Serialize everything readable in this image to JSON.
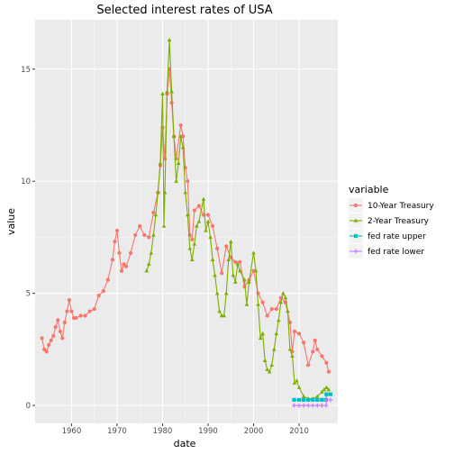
{
  "chart_data": {
    "type": "line",
    "title": "Selected interest rates of USA",
    "xlabel": "date",
    "ylabel": "value",
    "xlim": [
      1952,
      2018.5
    ],
    "ylim": [
      -0.8,
      17.2
    ],
    "x_ticks": [
      {
        "value": 1960,
        "label": "1960"
      },
      {
        "value": 1970,
        "label": "1970"
      },
      {
        "value": 1980,
        "label": "1980"
      },
      {
        "value": 1990,
        "label": "1990"
      },
      {
        "value": 2000,
        "label": "2000"
      },
      {
        "value": 2010,
        "label": "2010"
      }
    ],
    "y_ticks": [
      {
        "value": 0,
        "label": "0"
      },
      {
        "value": 5,
        "label": "5"
      },
      {
        "value": 10,
        "label": "10"
      },
      {
        "value": 15,
        "label": "15"
      }
    ],
    "grid": true,
    "legend": {
      "title": "variable",
      "placement": "right"
    },
    "series": [
      {
        "name": "10-Year Treasury",
        "color": "#F8766D",
        "marker": "circle",
        "x": [
          1953.5,
          1954.0,
          1954.5,
          1955.0,
          1955.5,
          1956.0,
          1956.5,
          1957.0,
          1957.5,
          1958.0,
          1958.5,
          1959.0,
          1959.5,
          1960.0,
          1960.5,
          1961.0,
          1962.0,
          1963.0,
          1964.0,
          1965.0,
          1966.0,
          1967.0,
          1968.0,
          1969.0,
          1969.5,
          1970.0,
          1970.5,
          1971.0,
          1971.5,
          1972.0,
          1973.0,
          1974.0,
          1975.0,
          1976.0,
          1977.0,
          1978.0,
          1979.0,
          1979.5,
          1980.0,
          1980.5,
          1981.0,
          1981.5,
          1982.0,
          1982.5,
          1983.0,
          1984.0,
          1984.5,
          1985.0,
          1985.5,
          1986.0,
          1986.5,
          1987.0,
          1988.0,
          1989.0,
          1990.0,
          1991.0,
          1992.0,
          1993.0,
          1994.0,
          1995.0,
          1996.0,
          1997.0,
          1998.0,
          1999.0,
          2000.0,
          2001.0,
          2002.0,
          2003.0,
          2004.0,
          2005.0,
          2006.0,
          2007.0,
          2008.0,
          2008.5,
          2009.0,
          2010.0,
          2011.0,
          2012.0,
          2013.0,
          2013.5,
          2014.0,
          2015.0,
          2016.0,
          2016.5
        ],
        "values": [
          3.0,
          2.5,
          2.4,
          2.7,
          2.9,
          3.1,
          3.5,
          3.8,
          3.3,
          3.0,
          3.7,
          4.2,
          4.7,
          4.2,
          3.9,
          3.9,
          4.0,
          4.0,
          4.2,
          4.3,
          4.9,
          5.1,
          5.6,
          6.5,
          7.3,
          7.8,
          6.8,
          6.0,
          6.3,
          6.2,
          6.8,
          7.6,
          8.0,
          7.6,
          7.5,
          8.6,
          9.5,
          10.7,
          12.4,
          11.0,
          13.9,
          15.0,
          13.5,
          12.0,
          11.0,
          12.5,
          12.0,
          10.6,
          10.0,
          7.6,
          7.4,
          8.7,
          8.9,
          8.5,
          8.5,
          8.0,
          7.0,
          5.9,
          7.1,
          6.6,
          6.4,
          6.4,
          5.3,
          5.6,
          6.0,
          5.0,
          4.6,
          4.0,
          4.3,
          4.3,
          4.8,
          4.6,
          3.7,
          2.4,
          3.3,
          3.2,
          2.8,
          1.8,
          2.4,
          2.9,
          2.5,
          2.2,
          1.9,
          1.5
        ]
      },
      {
        "name": "2-Year Treasury",
        "color": "#7CAE00",
        "marker": "triangle",
        "x": [
          1976.5,
          1977.0,
          1977.5,
          1978.0,
          1978.5,
          1979.0,
          1979.5,
          1980.0,
          1980.3,
          1980.5,
          1981.0,
          1981.5,
          1982.0,
          1982.5,
          1983.0,
          1983.5,
          1984.0,
          1984.5,
          1985.0,
          1985.5,
          1986.0,
          1986.5,
          1987.0,
          1987.5,
          1988.0,
          1989.0,
          1989.5,
          1990.0,
          1990.5,
          1991.0,
          1991.5,
          1992.0,
          1992.5,
          1993.0,
          1993.5,
          1994.0,
          1994.5,
          1995.0,
          1995.5,
          1996.0,
          1996.5,
          1997.0,
          1998.0,
          1998.5,
          1999.0,
          2000.0,
          2000.5,
          2001.0,
          2001.5,
          2002.0,
          2002.5,
          2003.0,
          2003.5,
          2004.0,
          2004.5,
          2005.0,
          2005.5,
          2006.0,
          2006.5,
          2007.0,
          2007.5,
          2008.0,
          2008.5,
          2009.0,
          2009.5,
          2010.0,
          2011.0,
          2012.0,
          2013.0,
          2014.0,
          2015.0,
          2015.5,
          2016.0,
          2016.5
        ],
        "values": [
          6.0,
          6.3,
          6.8,
          7.6,
          8.5,
          9.5,
          10.8,
          13.9,
          8.0,
          9.5,
          14.0,
          16.3,
          14.0,
          12.0,
          10.0,
          10.8,
          12.0,
          11.5,
          9.5,
          8.5,
          7.0,
          6.5,
          7.2,
          8.0,
          8.2,
          9.2,
          7.8,
          8.2,
          7.5,
          6.5,
          5.8,
          5.0,
          4.2,
          4.0,
          4.0,
          5.0,
          6.5,
          7.3,
          5.8,
          5.5,
          6.3,
          6.0,
          5.6,
          4.5,
          5.5,
          6.8,
          6.0,
          4.5,
          3.0,
          3.2,
          2.0,
          1.6,
          1.5,
          1.8,
          2.5,
          3.2,
          3.8,
          4.6,
          5.0,
          4.8,
          4.2,
          2.5,
          2.2,
          1.0,
          1.1,
          0.8,
          0.4,
          0.3,
          0.3,
          0.4,
          0.6,
          0.7,
          0.8,
          0.7
        ]
      },
      {
        "name": "fed rate upper",
        "color": "#00BFC4",
        "marker": "square",
        "x": [
          2008.9,
          2010.0,
          2011.0,
          2012.0,
          2013.0,
          2014.0,
          2015.0,
          2015.9,
          2016.0,
          2016.9
        ],
        "values": [
          0.25,
          0.25,
          0.25,
          0.25,
          0.25,
          0.25,
          0.25,
          0.25,
          0.5,
          0.5
        ]
      },
      {
        "name": "fed rate lower",
        "color": "#C77CFF",
        "marker": "plus",
        "x": [
          2008.9,
          2010.0,
          2011.0,
          2012.0,
          2013.0,
          2014.0,
          2015.0,
          2015.9,
          2016.0,
          2016.9
        ],
        "values": [
          0.0,
          0.0,
          0.0,
          0.0,
          0.0,
          0.0,
          0.0,
          0.0,
          0.25,
          0.25
        ]
      }
    ]
  }
}
